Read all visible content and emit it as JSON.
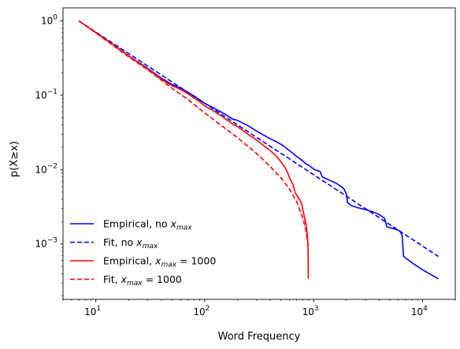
{
  "chart_data": {
    "type": "line",
    "title": "",
    "xlabel": "Word Frequency",
    "ylabel": "p(X≥x)",
    "x_scale": "log",
    "y_scale": "log",
    "xlim": [
      5,
      20000
    ],
    "ylim": [
      0.00018,
      1.5
    ],
    "grid": false,
    "legend_position": "lower-left",
    "x_ticks": [
      {
        "value": 10,
        "base": "10",
        "exp": "1"
      },
      {
        "value": 100,
        "base": "10",
        "exp": "2"
      },
      {
        "value": 1000,
        "base": "10",
        "exp": "3"
      },
      {
        "value": 10000,
        "base": "10",
        "exp": "4"
      }
    ],
    "y_ticks": [
      {
        "value": 0.001,
        "base": "10",
        "exp": "−3"
      },
      {
        "value": 0.01,
        "base": "10",
        "exp": "−2"
      },
      {
        "value": 0.1,
        "base": "10",
        "exp": "−1"
      },
      {
        "value": 1,
        "base": "10",
        "exp": "0"
      }
    ],
    "series": [
      {
        "name": "Empirical, no x_max",
        "legend_parts": [
          "Empirical, no ",
          "x",
          "max",
          ""
        ],
        "color": "#0000ff",
        "dash": "solid",
        "points": [
          [
            7,
            1.0
          ],
          [
            10,
            0.7
          ],
          [
            15,
            0.46
          ],
          [
            20,
            0.34
          ],
          [
            30,
            0.23
          ],
          [
            40,
            0.17
          ],
          [
            50,
            0.14
          ],
          [
            60,
            0.125
          ],
          [
            70,
            0.11
          ],
          [
            80,
            0.098
          ],
          [
            90,
            0.087
          ],
          [
            100,
            0.078
          ],
          [
            120,
            0.068
          ],
          [
            150,
            0.057
          ],
          [
            180,
            0.048
          ],
          [
            200,
            0.046
          ],
          [
            250,
            0.039
          ],
          [
            300,
            0.033
          ],
          [
            350,
            0.029
          ],
          [
            400,
            0.026
          ],
          [
            450,
            0.024
          ],
          [
            500,
            0.022
          ],
          [
            550,
            0.02
          ],
          [
            600,
            0.018
          ],
          [
            650,
            0.0165
          ],
          [
            700,
            0.015
          ],
          [
            750,
            0.014
          ],
          [
            800,
            0.013
          ],
          [
            850,
            0.012
          ],
          [
            900,
            0.0115
          ],
          [
            1000,
            0.0102
          ],
          [
            1050,
            0.0098
          ],
          [
            1100,
            0.0097
          ],
          [
            1150,
            0.0094
          ],
          [
            1200,
            0.008
          ],
          [
            1400,
            0.0072
          ],
          [
            1600,
            0.0066
          ],
          [
            1800,
            0.0059
          ],
          [
            1900,
            0.0055
          ],
          [
            2000,
            0.0047
          ],
          [
            2050,
            0.0036
          ],
          [
            2200,
            0.0033
          ],
          [
            2500,
            0.0031
          ],
          [
            3000,
            0.0029
          ],
          [
            3500,
            0.0027
          ],
          [
            4000,
            0.0025
          ],
          [
            4500,
            0.0022
          ],
          [
            4700,
            0.0017
          ],
          [
            5500,
            0.0016
          ],
          [
            6200,
            0.0015
          ],
          [
            6500,
            0.0013
          ],
          [
            6700,
            0.00068
          ],
          [
            8000,
            0.00056
          ],
          [
            10000,
            0.00045
          ],
          [
            14000,
            0.00034
          ]
        ]
      },
      {
        "name": "Fit, no x_max",
        "legend_parts": [
          "Fit, no ",
          "x",
          "max",
          ""
        ],
        "color": "#0000ff",
        "dash": "dashed",
        "points": [
          [
            7,
            1.0
          ],
          [
            14000,
            0.00068
          ]
        ]
      },
      {
        "name": "Empirical, x_max = 1000",
        "legend_parts": [
          "Empirical, ",
          "x",
          "max",
          " = 1000"
        ],
        "color": "#ff0000",
        "dash": "solid",
        "points": [
          [
            7,
            1.0
          ],
          [
            10,
            0.7
          ],
          [
            15,
            0.46
          ],
          [
            20,
            0.34
          ],
          [
            30,
            0.225
          ],
          [
            40,
            0.165
          ],
          [
            50,
            0.135
          ],
          [
            60,
            0.12
          ],
          [
            70,
            0.105
          ],
          [
            80,
            0.092
          ],
          [
            90,
            0.082
          ],
          [
            100,
            0.072
          ],
          [
            120,
            0.062
          ],
          [
            150,
            0.05
          ],
          [
            180,
            0.041
          ],
          [
            200,
            0.038
          ],
          [
            250,
            0.03
          ],
          [
            300,
            0.025
          ],
          [
            350,
            0.021
          ],
          [
            400,
            0.018
          ],
          [
            450,
            0.0155
          ],
          [
            500,
            0.0128
          ],
          [
            550,
            0.0105
          ],
          [
            580,
            0.009
          ],
          [
            600,
            0.0078
          ],
          [
            630,
            0.0068
          ],
          [
            650,
            0.0062
          ],
          [
            680,
            0.0048
          ],
          [
            700,
            0.0046
          ],
          [
            720,
            0.0042
          ],
          [
            750,
            0.0039
          ],
          [
            780,
            0.0034
          ],
          [
            800,
            0.0028
          ],
          [
            830,
            0.0022
          ],
          [
            860,
            0.0017
          ],
          [
            880,
            0.0012
          ],
          [
            890,
            0.0008
          ],
          [
            895,
            0.00034
          ]
        ]
      },
      {
        "name": "Fit, x_max = 1000",
        "legend_parts": [
          "Fit, ",
          "x",
          "max",
          " = 1000"
        ],
        "color": "#ff0000",
        "dash": "dashed",
        "points": [
          [
            7,
            1.0
          ],
          [
            10,
            0.69
          ],
          [
            20,
            0.33
          ],
          [
            30,
            0.22
          ],
          [
            50,
            0.125
          ],
          [
            70,
            0.088
          ],
          [
            100,
            0.058
          ],
          [
            150,
            0.037
          ],
          [
            200,
            0.027
          ],
          [
            300,
            0.0165
          ],
          [
            400,
            0.011
          ],
          [
            500,
            0.0078
          ],
          [
            600,
            0.0055
          ],
          [
            700,
            0.0037
          ],
          [
            800,
            0.0022
          ],
          [
            850,
            0.0015
          ],
          [
            900,
            0.00088
          ]
        ]
      }
    ]
  }
}
